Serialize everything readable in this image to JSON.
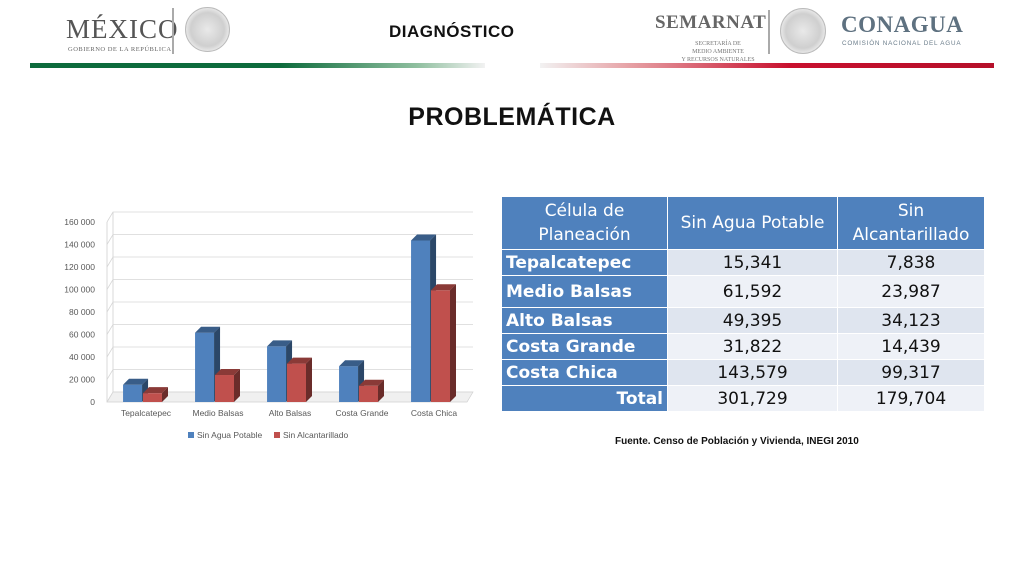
{
  "header": {
    "title": "DIAGNÓSTICO",
    "logo_mexico": {
      "word": "MÉXICO",
      "sub": "GOBIERNO DE LA REPÚBLICA"
    },
    "logo_semarnat": {
      "word": "SEMARNAT",
      "lines": [
        "SECRETARÍA DE",
        "MEDIO AMBIENTE",
        "Y RECURSOS NATURALES"
      ]
    },
    "logo_conagua": {
      "word": "CONAGUA",
      "sub": "COMISIÓN NACIONAL DEL AGUA"
    },
    "colors": {
      "green": "#0d6b3c",
      "red": "#c8102e"
    }
  },
  "page_title": "PROBLEMÁTICA",
  "chart_data": {
    "type": "bar",
    "categories": [
      "Tepalcatepec",
      "Medio Balsas",
      "Alto Balsas",
      "Costa Grande",
      "Costa Chica"
    ],
    "series": [
      {
        "name": "Sin Agua Potable",
        "values": [
          15341,
          61592,
          49395,
          31822,
          143579
        ],
        "color": "#4f81bd"
      },
      {
        "name": "Sin Alcantarillado",
        "values": [
          7838,
          23987,
          34123,
          14439,
          99317
        ],
        "color": "#c0504d"
      }
    ],
    "yticks": [
      "0",
      "20 000",
      "40 000",
      "60 000",
      "80 000",
      "100 000",
      "120 000",
      "140 000",
      "160 000"
    ],
    "ylim": [
      0,
      160000
    ],
    "grid": true,
    "legend": "bottom",
    "style": "3d-clustered"
  },
  "table": {
    "headers": [
      "Célula de Planeación",
      "Sin Agua Potable",
      "Sin Alcantarillado"
    ],
    "rows": [
      {
        "name": "Tepalcatepec",
        "agua": "15,341",
        "alc": "7,838"
      },
      {
        "name": "Medio Balsas",
        "agua": "61,592",
        "alc": "23,987"
      },
      {
        "name": "Alto Balsas",
        "agua": "49,395",
        "alc": "34,123"
      },
      {
        "name": "Costa Grande",
        "agua": "31,822",
        "alc": "14,439"
      },
      {
        "name": "Costa Chica",
        "agua": "143,579",
        "alc": "99,317"
      }
    ],
    "total": {
      "name": "Total",
      "agua": "301,729",
      "alc": "179,704"
    },
    "header_color": "#4f81bd"
  },
  "source": "Fuente. Censo de Población y Vivienda, INEGI 2010"
}
